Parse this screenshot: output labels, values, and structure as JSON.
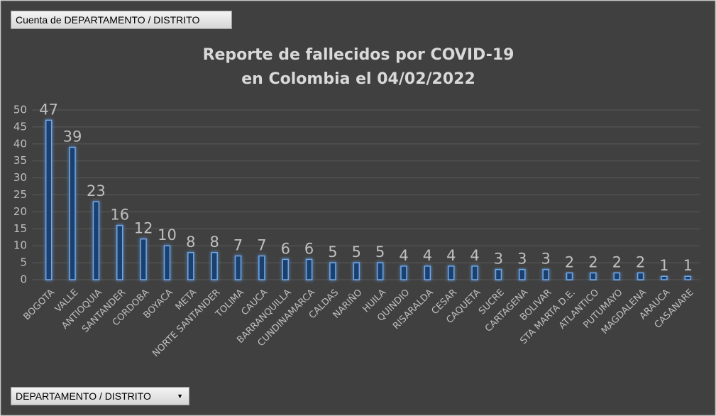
{
  "chart_data": {
    "type": "bar",
    "title": [
      "Reporte de fallecidos por COVID-19",
      "en Colombia el 04/02/2022"
    ],
    "categories": [
      "BOGOTA",
      "VALLE",
      "ANTIOQUIA",
      "SANTANDER",
      "CORDOBA",
      "BOYACA",
      "META",
      "NORTE SANTANDER",
      "TOLIMA",
      "CAUCA",
      "BARRANQUILLA",
      "CUNDINAMARCA",
      "CALDAS",
      "NARIÑO",
      "HUILA",
      "QUINDIO",
      "RISARALDA",
      "CESAR",
      "CAQUETA",
      "SUCRE",
      "CARTAGENA",
      "BOLIVAR",
      "STA MARTA D.E.",
      "ATLANTICO",
      "PUTUMAYO",
      "MAGDALENA",
      "ARAUCA",
      "CASANARE"
    ],
    "values": [
      47,
      39,
      23,
      16,
      12,
      10,
      8,
      8,
      7,
      7,
      6,
      6,
      5,
      5,
      5,
      4,
      4,
      4,
      4,
      3,
      3,
      3,
      2,
      2,
      2,
      2,
      1,
      1
    ],
    "color": "#1f3f6e",
    "ylim": [
      0,
      50
    ],
    "yticks": [
      0,
      5,
      10,
      15,
      20,
      25,
      30,
      35,
      40,
      45,
      50
    ],
    "grid": true
  },
  "pivot_buttons": {
    "value_field": "Cuenta de DEPARTAMENTO / DISTRITO",
    "axis_field": "DEPARTAMENTO / DISTRITO"
  }
}
